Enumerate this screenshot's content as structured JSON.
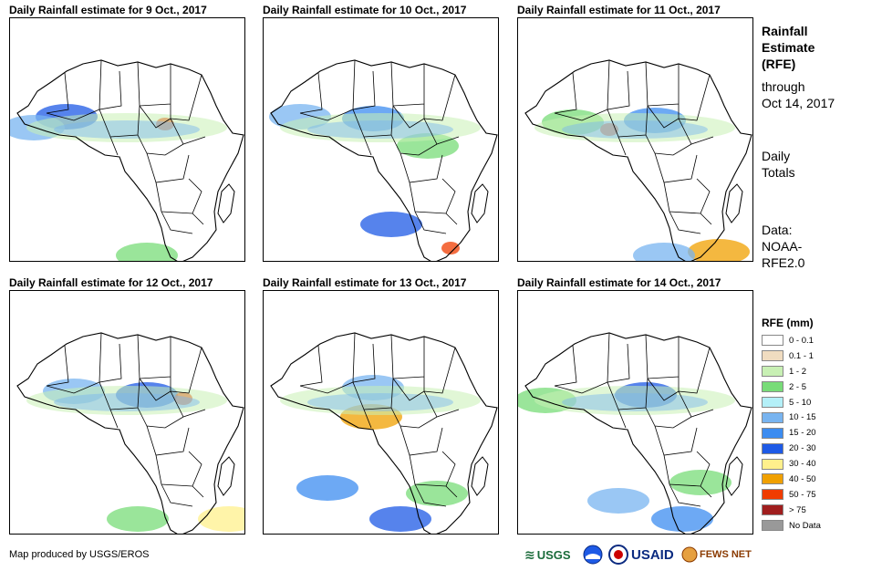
{
  "panels": [
    {
      "title": "Daily Rainfall estimate for 9 Oct., 2017"
    },
    {
      "title": "Daily Rainfall estimate for 10 Oct., 2017"
    },
    {
      "title": "Daily Rainfall estimate for 11 Oct., 2017"
    },
    {
      "title": "Daily Rainfall estimate for 12 Oct., 2017"
    },
    {
      "title": "Daily Rainfall estimate for 13 Oct., 2017"
    },
    {
      "title": "Daily Rainfall estimate for 14 Oct., 2017"
    }
  ],
  "sidebar": {
    "heading_line1": "Rainfall",
    "heading_line2": "Estimate",
    "heading_line3": "(RFE)",
    "through_line1": "through",
    "through_line2": "Oct 14, 2017",
    "daily_line1": "Daily",
    "daily_line2": "Totals",
    "data_line1": "Data:",
    "data_line2": "NOAA-",
    "data_line3": "RFE2.0"
  },
  "legend": {
    "title": "RFE (mm)",
    "items": [
      {
        "label": "0 - 0.1",
        "color": "#ffffff"
      },
      {
        "label": "0.1 - 1",
        "color": "#f0dcc0"
      },
      {
        "label": "1 - 2",
        "color": "#c8f0b4"
      },
      {
        "label": "2 - 5",
        "color": "#78dc78"
      },
      {
        "label": "5 - 10",
        "color": "#b4f0f8"
      },
      {
        "label": "10 - 15",
        "color": "#78b4f0"
      },
      {
        "label": "15 - 20",
        "color": "#3c8cf0"
      },
      {
        "label": "20 - 30",
        "color": "#1e5ae6"
      },
      {
        "label": "30 - 40",
        "color": "#fff08c"
      },
      {
        "label": "40 - 50",
        "color": "#f0a000"
      },
      {
        "label": "50 - 75",
        "color": "#f03c00"
      },
      {
        "label": "> 75",
        "color": "#a01e1e"
      },
      {
        "label": "No Data",
        "color": "#999999"
      }
    ]
  },
  "footer": {
    "credit": "Map produced by USGS/EROS"
  },
  "logos": {
    "usgs": "USGS",
    "usaid": "USAID",
    "fewsnet": "FEWS NET"
  }
}
